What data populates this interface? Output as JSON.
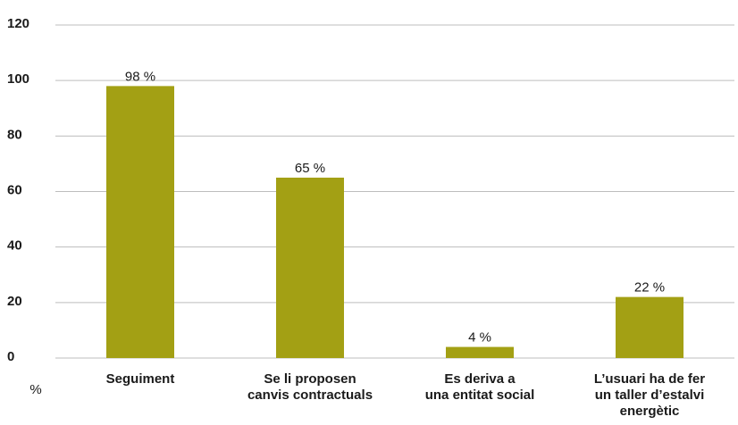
{
  "chart_data": {
    "type": "bar",
    "y_label": "%",
    "categories": [
      [
        "Seguiment"
      ],
      [
        "Se li proposen",
        "canvis contractuals"
      ],
      [
        "Es deriva a",
        "una entitat social"
      ],
      [
        "L’usuari ha de fer",
        "un taller d’estalvi",
        "energètic"
      ]
    ],
    "values": [
      98,
      65,
      4,
      22
    ],
    "value_labels": [
      "98 %",
      "65 %",
      "4 %",
      "22 %"
    ],
    "color": "#a3a014",
    "ylim": [
      0,
      120
    ],
    "yticks": [
      0,
      20,
      40,
      60,
      80,
      100,
      120
    ],
    "grid": true
  }
}
